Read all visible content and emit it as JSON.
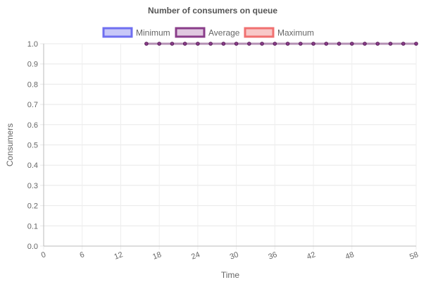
{
  "chart_data": {
    "type": "line",
    "title": "Number of consumers on queue",
    "xlabel": "Time",
    "ylabel": "Consumers",
    "xlim": [
      0,
      58
    ],
    "ylim": [
      0,
      1.0
    ],
    "x_ticks": [
      "0",
      "6",
      "12",
      "18",
      "24",
      "30",
      "36",
      "42",
      "48",
      "58"
    ],
    "y_ticks": [
      "0.0",
      "0.1",
      "0.2",
      "0.3",
      "0.4",
      "0.5",
      "0.6",
      "0.7",
      "0.8",
      "0.9",
      "1.0"
    ],
    "grid": true,
    "legend_position": "top-center",
    "series": [
      {
        "name": "Minimum",
        "color": "#6f6ff0",
        "fill": "#c8c8f8",
        "x": [],
        "y": []
      },
      {
        "name": "Average",
        "color": "#8a3d8a",
        "fill": "#e0c8e0",
        "x": [
          16,
          18,
          20,
          22,
          24,
          26,
          28,
          30,
          32,
          34,
          36,
          38,
          40,
          42,
          44,
          46,
          48,
          50,
          52,
          54,
          56,
          58
        ],
        "y": [
          1,
          1,
          1,
          1,
          1,
          1,
          1,
          1,
          1,
          1,
          1,
          1,
          1,
          1,
          1,
          1,
          1,
          1,
          1,
          1,
          1,
          1
        ]
      },
      {
        "name": "Maximum",
        "color": "#f07070",
        "fill": "#f8c8c8",
        "x": [],
        "y": []
      }
    ]
  }
}
